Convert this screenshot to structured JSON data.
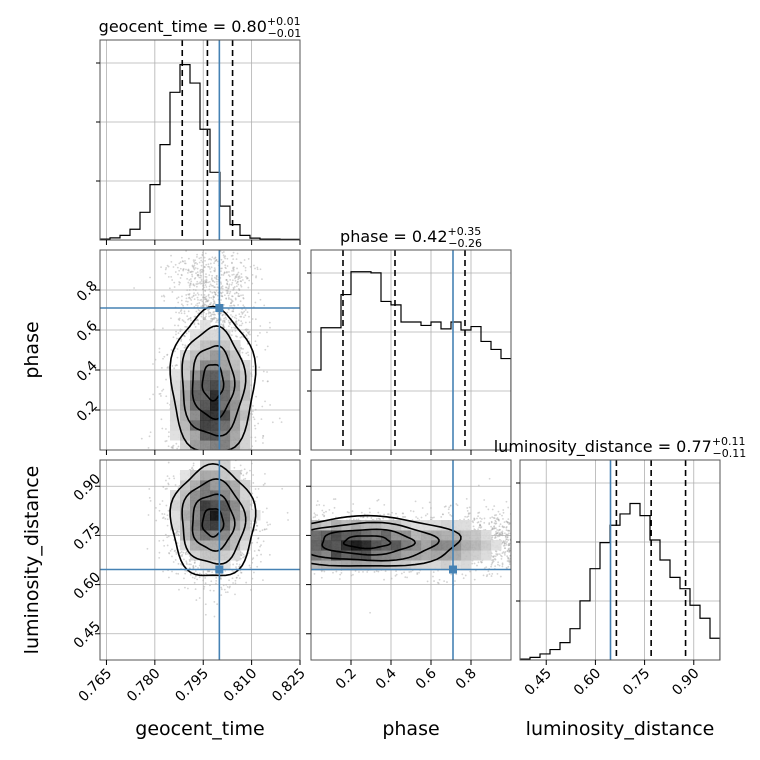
{
  "chart_data": {
    "type": "corner",
    "colors": {
      "truth": "#4682b4",
      "hist": "#000000",
      "quantile": "#000000",
      "scatter": "#a9a9a9",
      "grid": "#b0b0b0"
    },
    "parameters": [
      {
        "name": "geocent_time",
        "label": "geocent_time",
        "range": [
          0.763,
          0.825
        ],
        "ticks": [
          0.765,
          0.78,
          0.795,
          0.81,
          0.825
        ],
        "tick_labels": [
          "0.765",
          "0.780",
          "0.795",
          "0.810",
          "0.825"
        ],
        "truth": 0.8,
        "median": 0.8,
        "quantiles": [
          0.7885,
          0.7963,
          0.8041
        ],
        "title": {
          "param": "geocent_time",
          "value": "0.80",
          "plus": "+0.01",
          "minus": "−0.01"
        },
        "hist": [
          0.3,
          0.7,
          1.5,
          3.5,
          9,
          18,
          31,
          48,
          57,
          51,
          36,
          22,
          11,
          5,
          1.5,
          0.6,
          0.3,
          0.3,
          0.2,
          0.2
        ],
        "hist_ymax": 65
      },
      {
        "name": "phase",
        "label": "phase",
        "range": [
          0.0,
          1.0
        ],
        "ticks": [
          0.2,
          0.4,
          0.6,
          0.8
        ],
        "tick_labels": [
          "0.2",
          "0.4",
          "0.6",
          "0.8"
        ],
        "truth": 0.71,
        "median": 0.42,
        "quantiles": [
          0.16,
          0.42,
          0.77
        ],
        "title": {
          "param": "phase",
          "value": "0.42",
          "plus": "+0.35",
          "minus": "−0.26"
        },
        "hist": [
          0.7,
          1.07,
          1.07,
          1.36,
          1.56,
          1.56,
          1.55,
          1.3,
          1.27,
          1.12,
          1.12,
          1.09,
          1.12,
          1.06,
          1.12,
          1.05,
          1.08,
          0.95,
          0.88,
          0.8
        ],
        "hist_ymax": 1.75
      },
      {
        "name": "luminosity_distance",
        "label": "luminosity_distance",
        "range": [
          0.37,
          0.98
        ],
        "ticks": [
          0.45,
          0.6,
          0.75,
          0.9
        ],
        "tick_labels": [
          "0.45",
          "0.60",
          "0.75",
          "0.90"
        ],
        "truth": 0.646,
        "median": 0.77,
        "quantiles": [
          0.664,
          0.77,
          0.875
        ],
        "title": {
          "param": "luminosity_distance",
          "value": "0.77",
          "plus": "+0.11",
          "minus": "−0.11"
        },
        "hist": [
          0.1,
          0.3,
          0.7,
          1.2,
          2.0,
          3.6,
          6.8,
          10.5,
          13.5,
          15.5,
          16.8,
          18.0,
          16.6,
          13.8,
          11.5,
          9.5,
          8.2,
          6.3,
          4.8,
          2.5
        ],
        "hist_ymax": 23
      }
    ],
    "pairs": [
      {
        "x": 0,
        "y": 1,
        "center": [
          0.798,
          0.23
        ],
        "spread": [
          0.0065,
          0.34
        ],
        "corr": 0.0,
        "density_peak": [
          0.798,
          0.22
        ]
      },
      {
        "x": 0,
        "y": 2,
        "center": [
          0.798,
          0.79
        ],
        "spread": [
          0.0065,
          0.085
        ],
        "corr": 0.05,
        "density_peak": [
          0.798,
          0.82
        ]
      },
      {
        "x": 1,
        "y": 2,
        "center": [
          0.28,
          0.73
        ],
        "spread": [
          0.3,
          0.045
        ],
        "corr": 0.0,
        "density_peak": [
          0.2,
          0.72
        ]
      }
    ],
    "contour_levels": [
      "0.5σ",
      "1σ",
      "1.5σ",
      "2σ"
    ]
  }
}
